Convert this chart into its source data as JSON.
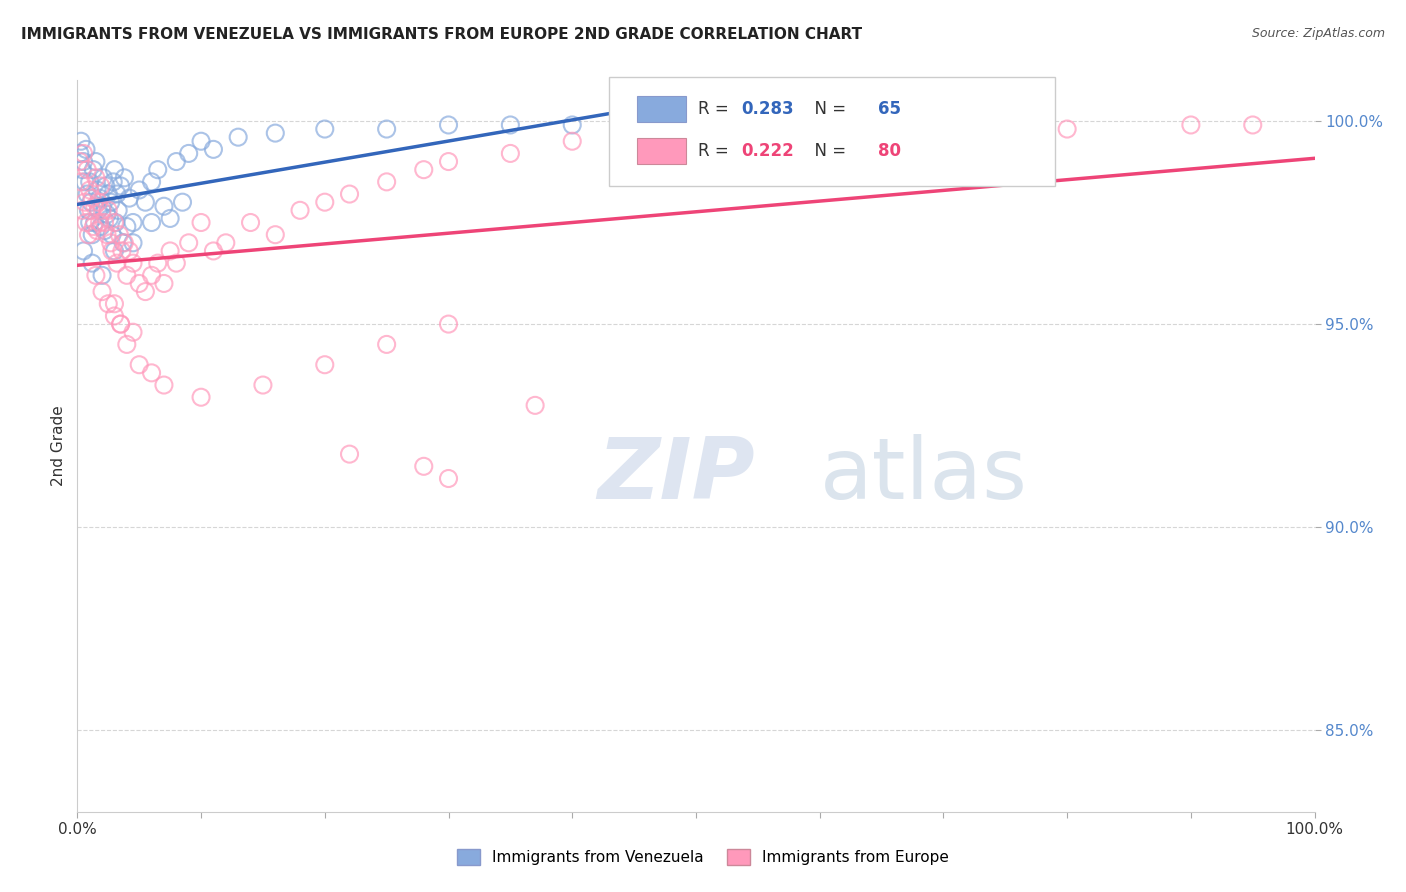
{
  "title": "IMMIGRANTS FROM VENEZUELA VS IMMIGRANTS FROM EUROPE 2ND GRADE CORRELATION CHART",
  "source": "Source: ZipAtlas.com",
  "ylabel": "2nd Grade",
  "legend_labels": [
    "Immigrants from Venezuela",
    "Immigrants from Europe"
  ],
  "blue_color": "#88AADD",
  "pink_color": "#FF99BB",
  "blue_line_color": "#3366BB",
  "pink_line_color": "#EE4477",
  "R_blue": 0.283,
  "N_blue": 65,
  "R_pink": 0.222,
  "N_pink": 80,
  "background_color": "#FFFFFF",
  "grid_color": "#CCCCCC",
  "ymin": 83,
  "ymax": 101,
  "xmin": 0,
  "xmax": 100,
  "yticks": [
    85.0,
    90.0,
    95.0,
    100.0
  ],
  "blue_scatter_x": [
    0.2,
    0.3,
    0.4,
    0.5,
    0.6,
    0.7,
    0.8,
    0.9,
    1.0,
    1.0,
    1.1,
    1.2,
    1.3,
    1.4,
    1.5,
    1.6,
    1.7,
    1.8,
    1.9,
    2.0,
    2.1,
    2.2,
    2.3,
    2.4,
    2.5,
    2.6,
    2.7,
    2.8,
    2.9,
    3.0,
    3.1,
    3.2,
    3.3,
    3.5,
    3.7,
    3.8,
    4.0,
    4.2,
    4.5,
    5.0,
    5.5,
    6.0,
    6.5,
    7.0,
    7.5,
    8.0,
    9.0,
    10.0,
    11.0,
    13.0,
    16.0,
    20.0,
    25.0,
    30.0,
    35.0,
    40.0,
    46.0,
    52.0,
    0.5,
    1.2,
    2.0,
    3.0,
    4.5,
    6.0,
    8.5
  ],
  "blue_scatter_y": [
    99.2,
    99.5,
    98.8,
    99.0,
    98.5,
    99.3,
    98.2,
    97.8,
    98.5,
    97.5,
    98.0,
    97.2,
    98.8,
    97.5,
    99.0,
    98.3,
    97.8,
    98.1,
    97.4,
    97.9,
    98.6,
    97.3,
    98.4,
    97.7,
    98.2,
    97.6,
    98.0,
    97.2,
    98.5,
    98.8,
    97.5,
    98.2,
    97.8,
    98.4,
    97.0,
    98.6,
    97.4,
    98.1,
    97.5,
    98.3,
    98.0,
    98.5,
    98.8,
    97.9,
    97.6,
    99.0,
    99.2,
    99.5,
    99.3,
    99.6,
    99.7,
    99.8,
    99.8,
    99.9,
    99.9,
    99.9,
    99.8,
    99.9,
    96.8,
    96.5,
    96.2,
    96.8,
    97.0,
    97.5,
    98.0
  ],
  "pink_scatter_x": [
    0.2,
    0.3,
    0.4,
    0.5,
    0.6,
    0.7,
    0.8,
    0.9,
    1.0,
    1.1,
    1.2,
    1.3,
    1.4,
    1.5,
    1.6,
    1.7,
    1.8,
    1.9,
    2.0,
    2.2,
    2.4,
    2.5,
    2.7,
    2.8,
    3.0,
    3.2,
    3.4,
    3.6,
    3.8,
    4.0,
    4.2,
    4.5,
    5.0,
    5.5,
    6.0,
    6.5,
    7.0,
    7.5,
    8.0,
    9.0,
    10.0,
    11.0,
    12.0,
    14.0,
    16.0,
    18.0,
    20.0,
    22.0,
    25.0,
    28.0,
    30.0,
    35.0,
    40.0,
    50.0,
    60.0,
    70.0,
    80.0,
    90.0,
    95.0,
    3.0,
    3.5,
    4.0,
    5.0,
    6.0,
    7.0,
    10.0,
    15.0,
    20.0,
    25.0,
    30.0,
    1.5,
    2.0,
    2.5,
    3.0,
    3.5,
    4.5,
    30.0,
    37.0,
    28.0,
    22.0
  ],
  "pink_scatter_y": [
    99.0,
    98.5,
    97.8,
    99.2,
    98.0,
    97.5,
    98.8,
    97.2,
    98.3,
    97.8,
    98.1,
    97.4,
    97.9,
    98.6,
    97.3,
    98.0,
    97.5,
    98.4,
    97.8,
    97.5,
    97.2,
    97.8,
    97.0,
    96.8,
    97.5,
    96.5,
    97.2,
    96.8,
    97.0,
    96.2,
    96.8,
    96.5,
    96.0,
    95.8,
    96.2,
    96.5,
    96.0,
    96.8,
    96.5,
    97.0,
    97.5,
    96.8,
    97.0,
    97.5,
    97.2,
    97.8,
    98.0,
    98.2,
    98.5,
    98.8,
    99.0,
    99.2,
    99.5,
    99.6,
    99.7,
    99.8,
    99.8,
    99.9,
    99.9,
    95.5,
    95.0,
    94.5,
    94.0,
    93.8,
    93.5,
    93.2,
    93.5,
    94.0,
    94.5,
    95.0,
    96.2,
    95.8,
    95.5,
    95.2,
    95.0,
    94.8,
    91.2,
    93.0,
    91.5,
    91.8
  ]
}
